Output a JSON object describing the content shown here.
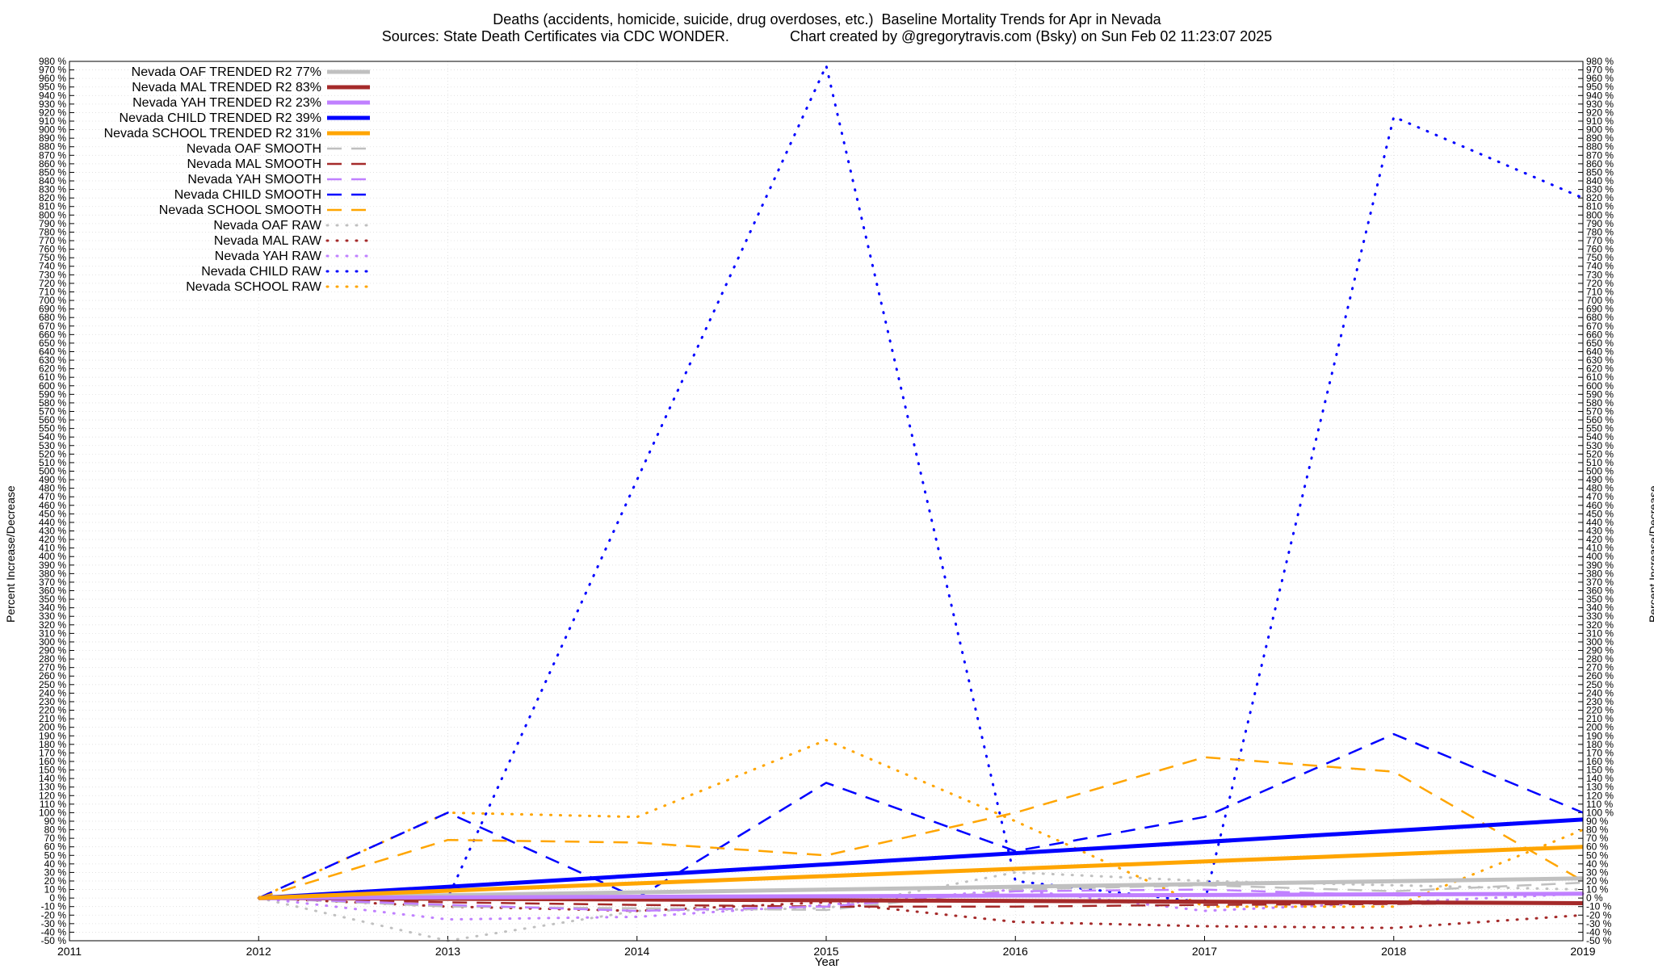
{
  "header": {
    "title": "Deaths (accidents, homicide, suicide, drug overdoses, etc.)  Baseline Mortality Trends for Apr in Nevada",
    "subtitle": "Sources: State Death Certificates via CDC WONDER.               Chart created by @gregorytravis.com (Bsky) on Sun Feb 02 11:23:07 2025"
  },
  "chart_data": {
    "type": "line",
    "xlabel": "Year",
    "ylabel": "Percent Increase/Decrease",
    "xlim": [
      2011,
      2019
    ],
    "ylim": [
      -50,
      980
    ],
    "x_ticks": [
      "2011",
      "2012",
      "2013",
      "2014",
      "2015",
      "2016",
      "2017",
      "2018",
      "2019"
    ],
    "y_tick_step": 10,
    "y_tick_suffix": " %",
    "grid": true,
    "legend_position": "top-left",
    "series": [
      {
        "name": "Nevada OAF TRENDED R2  77%",
        "style": "trend",
        "color": "#c0c0c0",
        "x": [
          2012,
          2019
        ],
        "y": [
          0,
          23
        ]
      },
      {
        "name": "Nevada MAL TRENDED R2  83%",
        "style": "trend",
        "color": "#a52a2a",
        "x": [
          2012,
          2019
        ],
        "y": [
          0,
          -6
        ]
      },
      {
        "name": "Nevada YAH TRENDED R2  23%",
        "style": "trend",
        "color": "#c080ff",
        "x": [
          2012,
          2019
        ],
        "y": [
          0,
          5
        ]
      },
      {
        "name": "Nevada CHILD TRENDED R2  39%",
        "style": "trend",
        "color": "#0000ff",
        "x": [
          2012,
          2019
        ],
        "y": [
          0,
          92
        ]
      },
      {
        "name": "Nevada SCHOOL TRENDED R2  31%",
        "style": "trend",
        "color": "#ffa500",
        "x": [
          2012,
          2019
        ],
        "y": [
          0,
          60
        ]
      },
      {
        "name": "Nevada OAF SMOOTH",
        "style": "smooth",
        "color": "#c0c0c0",
        "x": [
          2012,
          2013,
          2014,
          2015,
          2016,
          2017,
          2018,
          2019
        ],
        "y": [
          0,
          -10,
          -12,
          -14,
          10,
          15,
          8,
          18
        ]
      },
      {
        "name": "Nevada MAL SMOOTH",
        "style": "smooth",
        "color": "#a52a2a",
        "x": [
          2012,
          2013,
          2014,
          2015,
          2016,
          2017,
          2018,
          2019
        ],
        "y": [
          0,
          -5,
          -8,
          -10,
          -10,
          -8,
          -7,
          -5
        ]
      },
      {
        "name": "Nevada YAH SMOOTH",
        "style": "smooth",
        "color": "#c080ff",
        "x": [
          2012,
          2013,
          2014,
          2015,
          2016,
          2017,
          2018,
          2019
        ],
        "y": [
          0,
          -8,
          -15,
          -10,
          8,
          10,
          3,
          5
        ]
      },
      {
        "name": "Nevada CHILD SMOOTH",
        "style": "smooth",
        "color": "#0000ff",
        "x": [
          2012,
          2013,
          2014,
          2015,
          2016,
          2017,
          2018,
          2019
        ],
        "y": [
          0,
          100,
          0,
          135,
          55,
          95,
          192,
          100
        ]
      },
      {
        "name": "Nevada SCHOOL SMOOTH",
        "style": "smooth",
        "color": "#ffa500",
        "x": [
          2012,
          2013,
          2014,
          2015,
          2016,
          2017,
          2018,
          2019
        ],
        "y": [
          0,
          68,
          65,
          50,
          100,
          165,
          148,
          20
        ]
      },
      {
        "name": "Nevada OAF RAW",
        "style": "raw",
        "color": "#c0c0c0",
        "x": [
          2012,
          2013,
          2014,
          2015,
          2016,
          2017,
          2018,
          2019
        ],
        "y": [
          0,
          -50,
          -15,
          -12,
          30,
          20,
          15,
          10
        ]
      },
      {
        "name": "Nevada MAL RAW",
        "style": "raw",
        "color": "#a52a2a",
        "x": [
          2012,
          2013,
          2014,
          2015,
          2016,
          2017,
          2018,
          2019
        ],
        "y": [
          0,
          -10,
          -15,
          -5,
          -28,
          -33,
          -35,
          -20
        ]
      },
      {
        "name": "Nevada YAH RAW",
        "style": "raw",
        "color": "#c080ff",
        "x": [
          2012,
          2013,
          2014,
          2015,
          2016,
          2017,
          2018,
          2019
        ],
        "y": [
          0,
          -25,
          -22,
          -8,
          10,
          -15,
          -5,
          5
        ]
      },
      {
        "name": "Nevada CHILD RAW",
        "style": "raw",
        "color": "#0000ff",
        "x": [
          2012,
          2013,
          2014,
          2015,
          2016,
          2017,
          2018,
          2019
        ],
        "y": [
          0,
          0,
          490,
          975,
          20,
          -5,
          915,
          820
        ]
      },
      {
        "name": "Nevada SCHOOL RAW",
        "style": "raw",
        "color": "#ffa500",
        "x": [
          2012,
          2013,
          2014,
          2015,
          2016,
          2017,
          2018,
          2019
        ],
        "y": [
          0,
          100,
          95,
          185,
          90,
          -10,
          -10,
          80
        ]
      }
    ]
  }
}
